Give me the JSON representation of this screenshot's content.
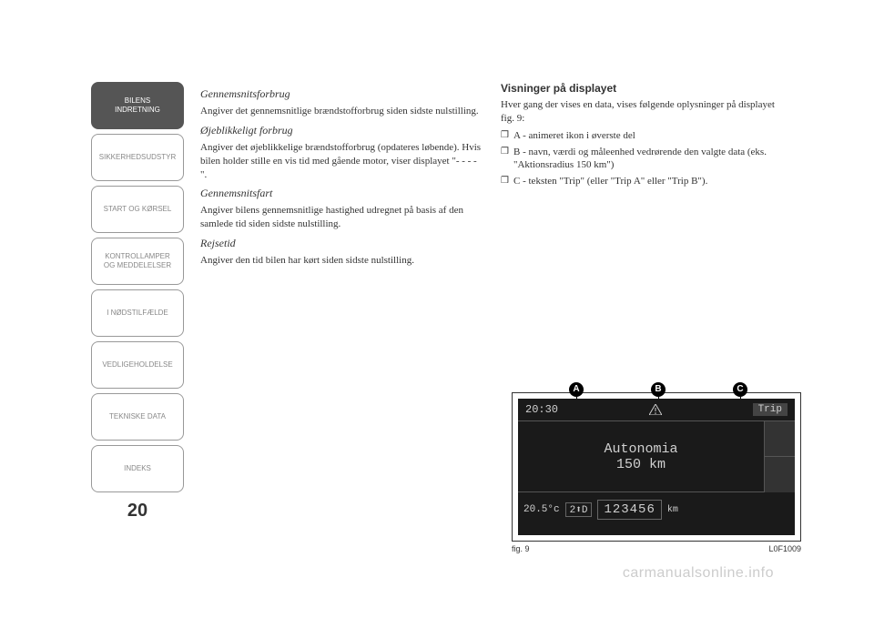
{
  "sidebar": {
    "items": [
      {
        "label": "BILENS\nINDRETNING",
        "active": true
      },
      {
        "label": "SIKKERHEDSUDSTYR",
        "active": false
      },
      {
        "label": "START OG KØRSEL",
        "active": false
      },
      {
        "label": "KONTROLLAMPER\nOG MEDDELELSER",
        "active": false
      },
      {
        "label": "I NØDSTILFÆLDE",
        "active": false
      },
      {
        "label": "VEDLIGEHOLDELSE",
        "active": false
      },
      {
        "label": "TEKNISKE DATA",
        "active": false
      },
      {
        "label": "INDEKS",
        "active": false
      }
    ]
  },
  "page_number": "20",
  "left_column": {
    "h1": "Gennemsnitsforbrug",
    "p1": "Angiver det gennemsnitlige brændstofforbrug siden sidste nulstilling.",
    "h2": "Øjeblikkeligt forbrug",
    "p2": "Angiver det øjeblikkelige brændstofforbrug (opdateres løbende). Hvis bilen holder stille en vis tid med gående motor, viser displayet \"- - - -\".",
    "h3": "Gennemsnitsfart",
    "p3": "Angiver bilens gennemsnitlige hastighed udregnet på basis af den samlede tid siden sidste nulstilling.",
    "h4": "Rejsetid",
    "p4": "Angiver den tid bilen har kørt siden sidste nulstilling."
  },
  "right_column": {
    "h1": "Visninger på displayet",
    "p1": "Hver gang der vises en data, vises følgende oplysninger på displayet fig. 9:",
    "li1": "A - animeret ikon i øverste del",
    "li2": "B - navn, værdi og måleenhed vedrørende den valgte data (eks. \"Aktionsradius 150 km\")",
    "li3": "C - teksten \"Trip\" (eller \"Trip A\" eller \"Trip B\")."
  },
  "display": {
    "labels": {
      "A": "A",
      "B": "B",
      "C": "C"
    },
    "time": "20:30",
    "trip": "Trip",
    "main_line1": "Autonomia",
    "main_line2": "150 km",
    "temp": "20.5°c",
    "gear": "2⬆D",
    "odo": "123456",
    "odo_unit": "km"
  },
  "figure": {
    "label": "fig. 9",
    "code": "L0F1009"
  },
  "watermark": "carmanualsonline.info"
}
